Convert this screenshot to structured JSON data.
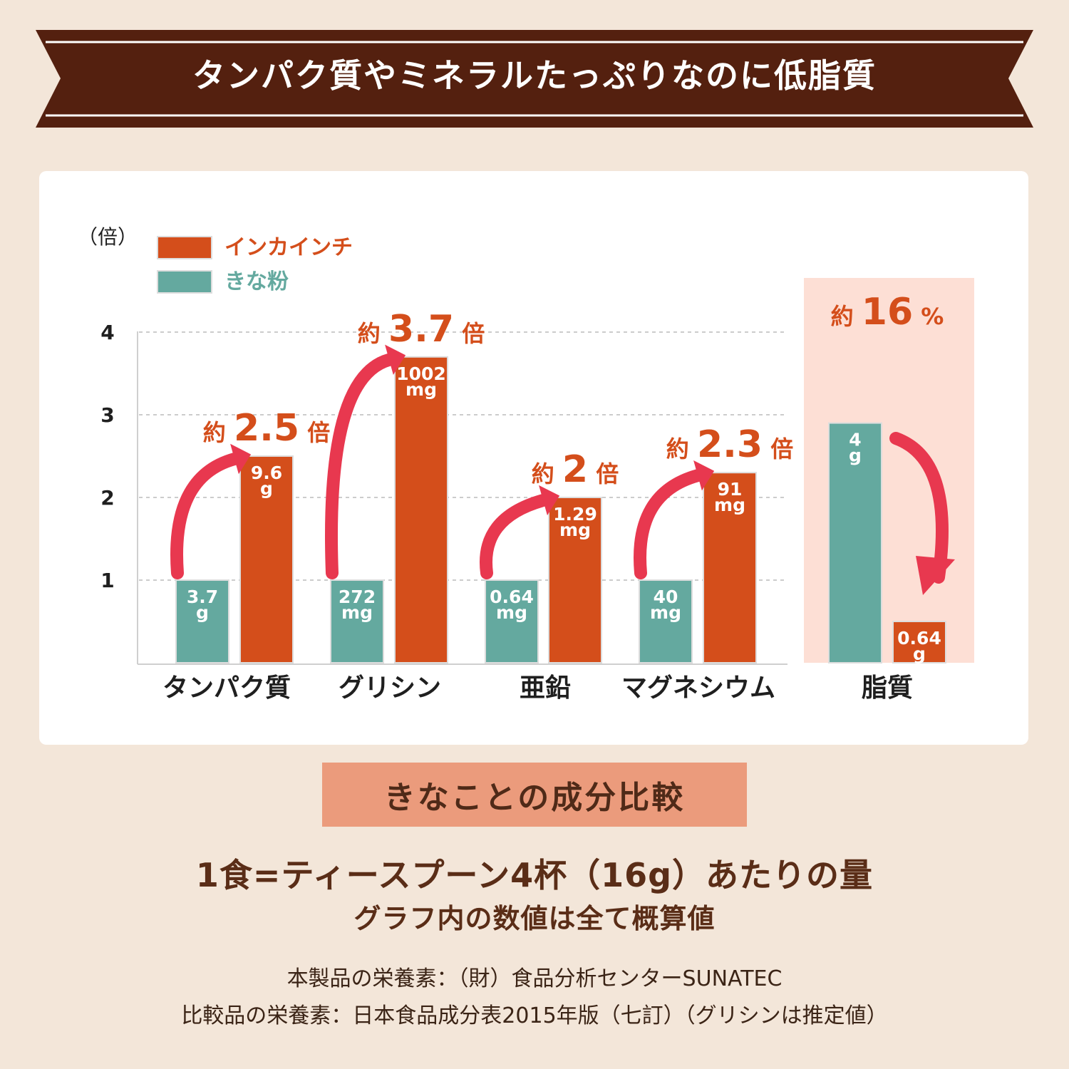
{
  "header": {
    "title": "タンパク質やミネラルたっぷりなのに低脂質"
  },
  "colors": {
    "incainchi": "#d44e1b",
    "kinako": "#64a99f",
    "fat_panel": "#fddfd5",
    "arrow": "#e8384f",
    "banner": "#54200f"
  },
  "chart_data": {
    "type": "bar",
    "y_unit_label": "（倍）",
    "yticks": [
      1,
      2,
      3,
      4
    ],
    "ylim": [
      0,
      4
    ],
    "grid": true,
    "legend_position": "top-left",
    "series": [
      {
        "name": "インカインチ",
        "color": "#d44e1b"
      },
      {
        "name": "きな粉",
        "color": "#64a99f"
      }
    ],
    "categories": [
      "タンパク質",
      "グリシン",
      "亜鉛",
      "マグネシウム",
      "脂質"
    ],
    "groups": [
      {
        "category": "タンパク質",
        "kinako": {
          "ratio": 1,
          "value": "3.7",
          "unit": "g"
        },
        "incainchi": {
          "ratio": 2.5,
          "value": "9.6",
          "unit": "g"
        },
        "annotation": {
          "prefix": "約",
          "number": "2.5",
          "suffix": "倍"
        }
      },
      {
        "category": "グリシン",
        "kinako": {
          "ratio": 1,
          "value": "272",
          "unit": "mg"
        },
        "incainchi": {
          "ratio": 3.7,
          "value": "1002",
          "unit": "mg"
        },
        "annotation": {
          "prefix": "約",
          "number": "3.7",
          "suffix": "倍"
        }
      },
      {
        "category": "亜鉛",
        "kinako": {
          "ratio": 1,
          "value": "0.64",
          "unit": "mg"
        },
        "incainchi": {
          "ratio": 2,
          "value": "1.29",
          "unit": "mg"
        },
        "annotation": {
          "prefix": "約",
          "number": "2",
          "suffix": "倍"
        }
      },
      {
        "category": "マグネシウム",
        "kinako": {
          "ratio": 1,
          "value": "40",
          "unit": "mg"
        },
        "incainchi": {
          "ratio": 2.3,
          "value": "91",
          "unit": "mg"
        },
        "annotation": {
          "prefix": "約",
          "number": "2.3",
          "suffix": "倍"
        }
      },
      {
        "category": "脂質",
        "kinako": {
          "ratio": 2.9,
          "value": "4",
          "unit": "g"
        },
        "incainchi": {
          "ratio": 0.5,
          "value": "0.64",
          "unit": "g"
        },
        "annotation": {
          "prefix": "約",
          "number": "16",
          "suffix": "%"
        }
      }
    ]
  },
  "comparison_title": "きなことの成分比較",
  "notes": {
    "serving": "1食=ティースプーン4杯（16g）あたりの量",
    "approx": "グラフ内の数値は全て概算値"
  },
  "sources": {
    "line1": "本製品の栄養素：（財）食品分析センターSUNATEC",
    "line2": "比較品の栄養素：日本食品成分表2015年版（七訂）（グリシンは推定値）"
  }
}
